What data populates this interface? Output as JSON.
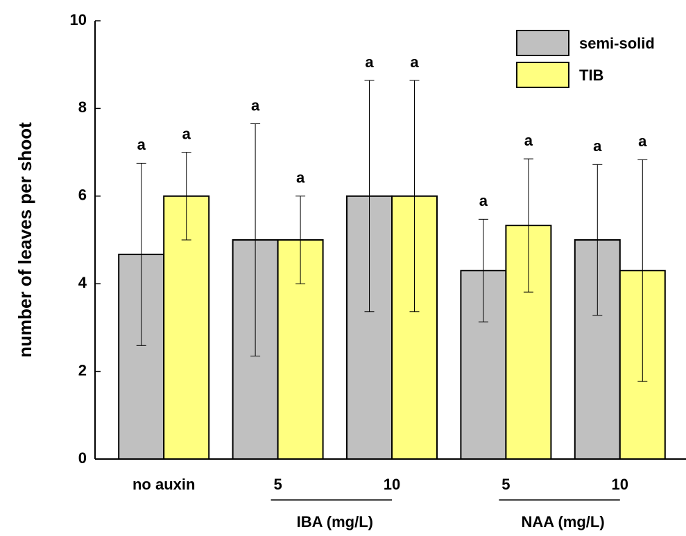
{
  "chart_data": {
    "type": "bar",
    "y_label": "number of leaves per shoot",
    "categories": [
      "no auxin",
      "5",
      "10",
      "5",
      "10"
    ],
    "group_labels": [
      "IBA (mg/L)",
      "NAA (mg/L)"
    ],
    "series": [
      {
        "name": "semi-solid",
        "color": "#c0c0c0",
        "values": [
          4.67,
          5.0,
          6.0,
          4.3,
          5.0
        ],
        "errors": [
          2.08,
          2.65,
          2.64,
          1.17,
          1.72
        ],
        "significance_labels": [
          "a",
          "a",
          "a",
          "a",
          "a"
        ]
      },
      {
        "name": "TIB",
        "color": "#ffff80",
        "values": [
          6.0,
          5.0,
          6.0,
          5.33,
          4.3
        ],
        "errors": [
          1.0,
          1.0,
          2.64,
          1.52,
          2.53
        ],
        "significance_labels": [
          "a",
          "a",
          "a",
          "a",
          "a"
        ]
      }
    ],
    "ylim": [
      0,
      10
    ],
    "yticks": [
      0,
      2,
      4,
      6,
      8,
      10
    ],
    "grid": false,
    "legend": "upper right"
  }
}
